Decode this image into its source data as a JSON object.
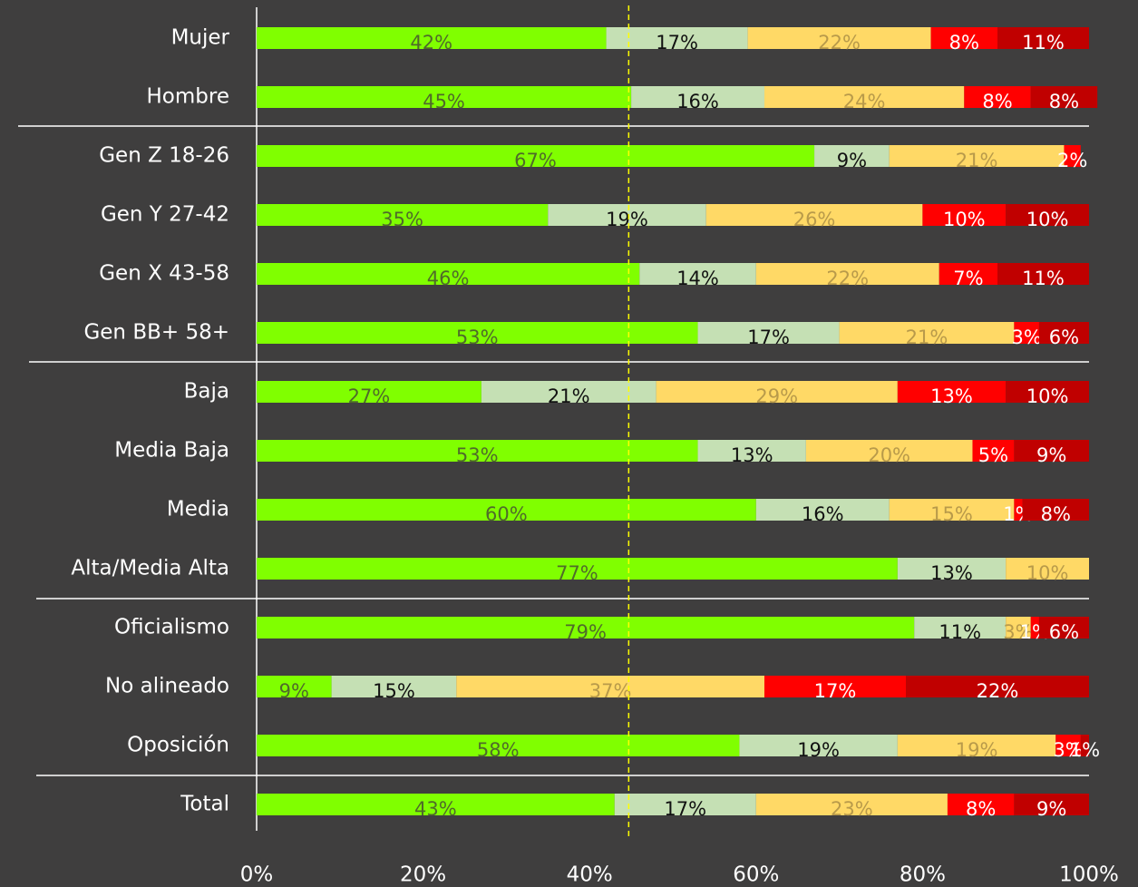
{
  "chart_data": {
    "type": "stacked-bar-horizontal",
    "categories": [
      "Mujer",
      "Hombre",
      "Gen Z 18-26",
      "Gen Y 27-42",
      "Gen X 43-58",
      "Gen BB+ 58+",
      "Baja",
      "Media Baja",
      "Media",
      "Alta/Media Alta",
      "Oficialismo",
      "No alineado",
      "Oposición",
      "Total"
    ],
    "series": [
      {
        "color": "#80ff00",
        "label_color": "#4f6b2a",
        "values": [
          42,
          45,
          67,
          35,
          46,
          53,
          27,
          53,
          60,
          77,
          79,
          9,
          58,
          43
        ],
        "value_labels": [
          "42%",
          "45%",
          "67%",
          "35%",
          "46%",
          "53%",
          "27%",
          "53%",
          "60%",
          "77%",
          "79%",
          "9%",
          "58%",
          "43%"
        ]
      },
      {
        "color": "#c5e0b4",
        "label_color": "#111111",
        "values": [
          17,
          16,
          9,
          19,
          14,
          17,
          21,
          13,
          16,
          13,
          11,
          15,
          19,
          17
        ],
        "value_labels": [
          "17%",
          "16%",
          "9%",
          "19%",
          "14%",
          "17%",
          "21%",
          "13%",
          "16%",
          "13%",
          "11%",
          "15%",
          "19%",
          "17%"
        ]
      },
      {
        "color": "#ffd966",
        "label_color": "#b89a4a",
        "values": [
          22,
          24,
          21,
          26,
          22,
          21,
          29,
          20,
          15,
          10,
          3,
          37,
          19,
          23
        ],
        "value_labels": [
          "22%",
          "24%",
          "21%",
          "26%",
          "22%",
          "21%",
          "29%",
          "20%",
          "15%",
          "10%",
          "3%",
          "37%",
          "19%",
          "23%"
        ]
      },
      {
        "color": "#ff0000",
        "label_color": "#ffffff",
        "values": [
          8,
          8,
          2,
          10,
          7,
          3,
          13,
          5,
          1,
          null,
          1,
          17,
          3,
          8
        ],
        "value_labels": [
          "8%",
          "8%",
          "2%",
          "10%",
          "7%",
          "3%",
          "13%",
          "5%",
          "1%",
          null,
          "1%",
          "17%",
          "3%",
          "8%"
        ]
      },
      {
        "color": "#c00000",
        "label_color": "#ffffff",
        "values": [
          11,
          8,
          null,
          10,
          11,
          6,
          10,
          9,
          8,
          null,
          6,
          22,
          1,
          9
        ],
        "value_labels": [
          "11%",
          "8%",
          null,
          "10%",
          "11%",
          "6%",
          "10%",
          "9%",
          "8%",
          null,
          "6%",
          "22%",
          "1%",
          "9%"
        ]
      }
    ],
    "xlim": [
      0,
      100
    ],
    "xticks": [
      {
        "value": 0,
        "label": "0%"
      },
      {
        "value": 20,
        "label": "20%"
      },
      {
        "value": 40,
        "label": "40%"
      },
      {
        "value": 60,
        "label": "60%"
      },
      {
        "value": 80,
        "label": "80%"
      },
      {
        "value": 100,
        "label": "100%"
      }
    ],
    "reference_line": 44.7,
    "reference_color": "#ffff00"
  }
}
